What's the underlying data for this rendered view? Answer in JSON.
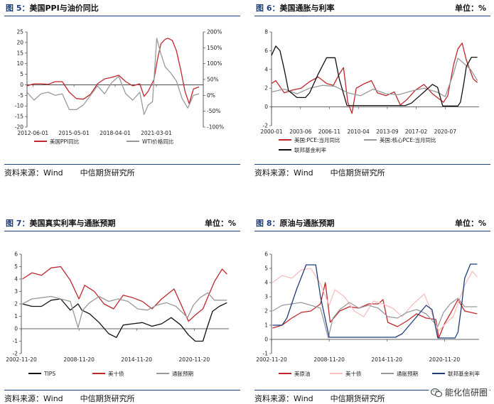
{
  "panels": [
    {
      "fig": "图 5：",
      "title": "美国PPI与油价同比",
      "unit": "",
      "source_label": "资料来源：Wind",
      "source_name": "中信期货研究所"
    },
    {
      "fig": "图 6：",
      "title": "美国通胀与利率",
      "unit": "单位：%",
      "source_label": "资料来源：Wind",
      "source_name": "中信期货研究所"
    },
    {
      "fig": "图 7：",
      "title": "美国真实利率与通胀预期",
      "unit": "单位：%",
      "source_label": "资料来源：Wind",
      "source_name": "中信期货研究所"
    },
    {
      "fig": "图 8：",
      "title": "原油与通胀预期",
      "unit": "单位：%",
      "source_label": "资料来源：Wind",
      "source_name": "中信期货研究所"
    }
  ],
  "watermark": {
    "text": "能化信研圈",
    "icon": "wechat-icon"
  },
  "chart_data": [
    {
      "type": "line",
      "xlim": [
        2012.0,
        2024.5
      ],
      "ylim": [
        -20,
        25
      ],
      "y_ticks": [
        -20,
        -15,
        -10,
        -5,
        0,
        5,
        10,
        15,
        20,
        25
      ],
      "y2lim": [
        -100,
        200
      ],
      "y2_ticks": [
        "-100%",
        "-50%",
        "0%",
        "50%",
        "100%",
        "150%",
        "200%"
      ],
      "y2_tick_values": [
        -100,
        -50,
        0,
        50,
        100,
        150,
        200
      ],
      "x_tick_labels": [
        "2012-06-01",
        "2015-05-01",
        "2018-04-01",
        "2021-03-01"
      ],
      "x_tick_values": [
        2012.42,
        2015.33,
        2018.25,
        2021.17
      ],
      "grid": false,
      "legend": "bottom",
      "series": [
        {
          "name": "美国PPI同比",
          "color": "#c0272d",
          "axis": "left",
          "x": [
            2012.0,
            2012.5,
            2013.0,
            2013.5,
            2014.0,
            2014.5,
            2015.0,
            2015.5,
            2016.0,
            2016.5,
            2017.0,
            2017.5,
            2018.0,
            2018.5,
            2019.0,
            2019.5,
            2020.0,
            2020.3,
            2020.6,
            2021.0,
            2021.25,
            2021.5,
            2021.8,
            2022.0,
            2022.3,
            2022.6,
            2022.9,
            2023.2,
            2023.5,
            2023.8,
            2024.2
          ],
          "y": [
            -0.5,
            0.5,
            0.5,
            0.2,
            1.5,
            1.5,
            -3.5,
            -6.5,
            -6.8,
            -4.5,
            0.5,
            2.8,
            3.5,
            4.5,
            1.5,
            -0.5,
            0.5,
            -5.5,
            -3.0,
            2.5,
            12.0,
            19.5,
            21.5,
            22.0,
            21.0,
            16.0,
            7.0,
            -3.0,
            -9.0,
            -2.0,
            -1.0
          ]
        },
        {
          "name": "WTI价格同比",
          "color": "#999999",
          "axis": "right",
          "x": [
            2012.0,
            2012.5,
            2013.0,
            2013.5,
            2014.0,
            2014.5,
            2015.0,
            2015.5,
            2016.0,
            2016.5,
            2017.0,
            2017.5,
            2018.0,
            2018.5,
            2019.0,
            2019.5,
            2020.0,
            2020.3,
            2020.6,
            2020.9,
            2021.2,
            2021.5,
            2021.8,
            2022.2,
            2022.6,
            2023.0,
            2023.4,
            2023.8,
            2024.2
          ],
          "y": [
            10,
            -15,
            5,
            10,
            0,
            5,
            -45,
            -45,
            -30,
            0,
            30,
            5,
            40,
            60,
            5,
            -15,
            10,
            -60,
            -30,
            -20,
            180,
            130,
            90,
            70,
            45,
            -10,
            -40,
            0,
            5
          ]
        }
      ]
    },
    {
      "type": "line",
      "xlim": [
        2000.0,
        2024.5
      ],
      "ylim": [
        -2,
        8
      ],
      "y_ticks": [
        -2,
        0,
        2,
        4,
        6,
        8
      ],
      "x_tick_labels": [
        "2000-01",
        "2003-06",
        "2006-11",
        "2010-04",
        "2013-09",
        "2017-02",
        "2020-07"
      ],
      "x_tick_values": [
        2000.0,
        2003.42,
        2006.83,
        2010.25,
        2013.67,
        2017.08,
        2020.5
      ],
      "grid": false,
      "legend": "bottom",
      "series": [
        {
          "name": "美国:PCE:当月同比",
          "color": "#c0272d",
          "x": [
            2000.0,
            2000.5,
            2001.5,
            2002.5,
            2003.5,
            2004.5,
            2005.5,
            2006.5,
            2007.3,
            2008.0,
            2008.5,
            2009.0,
            2009.5,
            2010.0,
            2011.0,
            2011.8,
            2012.5,
            2013.5,
            2014.5,
            2015.2,
            2016.0,
            2017.0,
            2018.0,
            2019.0,
            2020.3,
            2020.8,
            2021.5,
            2022.0,
            2022.5,
            2023.0,
            2023.8,
            2024.3
          ],
          "y": [
            2.5,
            2.8,
            1.5,
            1.8,
            2.0,
            2.7,
            3.2,
            2.5,
            2.3,
            3.5,
            4.2,
            0.5,
            -0.7,
            2.0,
            2.5,
            2.8,
            1.5,
            1.2,
            1.6,
            0.2,
            0.8,
            1.8,
            2.4,
            1.4,
            0.5,
            1.2,
            4.5,
            6.2,
            6.8,
            5.0,
            3.0,
            2.6
          ]
        },
        {
          "name": "美国:核心PCE:当月同比",
          "color": "#999999",
          "x": [
            2000.0,
            2001.5,
            2003.0,
            2004.5,
            2006.0,
            2007.5,
            2009.0,
            2010.5,
            2012.0,
            2013.5,
            2015.0,
            2016.5,
            2018.0,
            2019.5,
            2020.5,
            2021.5,
            2022.0,
            2022.5,
            2023.5,
            2024.3
          ],
          "y": [
            1.6,
            1.9,
            1.4,
            2.0,
            2.3,
            2.2,
            1.5,
            1.2,
            1.9,
            1.4,
            1.3,
            1.7,
            2.0,
            1.6,
            1.1,
            3.6,
            5.2,
            4.8,
            4.0,
            2.8
          ]
        },
        {
          "name": "联邦基金利率",
          "color": "#111111",
          "x": [
            2000.0,
            2000.5,
            2001.0,
            2001.5,
            2002.0,
            2003.0,
            2004.0,
            2004.5,
            2005.5,
            2006.5,
            2007.5,
            2008.0,
            2008.9,
            2015.8,
            2016.5,
            2017.5,
            2018.5,
            2019.0,
            2019.6,
            2020.2,
            2022.0,
            2022.3,
            2022.7,
            2023.0,
            2023.6,
            2024.3
          ],
          "y": [
            5.5,
            6.5,
            6.0,
            4.0,
            1.75,
            1.0,
            1.0,
            1.5,
            3.5,
            5.25,
            5.25,
            3.0,
            0.15,
            0.15,
            0.4,
            1.2,
            2.0,
            2.4,
            2.1,
            0.1,
            0.1,
            0.5,
            2.5,
            4.3,
            5.3,
            5.3
          ]
        }
      ]
    },
    {
      "type": "line",
      "xlim": [
        2002.9,
        2024.5
      ],
      "ylim": [
        -2,
        6
      ],
      "y_ticks": [
        -2,
        -1,
        0,
        1,
        2,
        3,
        4,
        5,
        6
      ],
      "x_tick_labels": [
        "2002-11-20",
        "2008-11-20",
        "2014-11-20",
        "2020-11-20"
      ],
      "x_tick_values": [
        2002.9,
        2008.9,
        2014.9,
        2020.9
      ],
      "grid": false,
      "legend": "bottom",
      "series": [
        {
          "name": "TIPS",
          "color": "#111111",
          "x": [
            2003.0,
            2004.0,
            2005.0,
            2006.0,
            2007.0,
            2008.0,
            2008.8,
            2009.2,
            2010.0,
            2011.0,
            2012.0,
            2012.8,
            2013.5,
            2014.5,
            2015.5,
            2016.5,
            2017.5,
            2018.5,
            2019.5,
            2020.3,
            2021.0,
            2021.8,
            2022.2,
            2022.8,
            2023.5,
            2024.3
          ],
          "y": [
            2.0,
            1.8,
            1.8,
            2.3,
            2.4,
            1.5,
            2.0,
            1.5,
            1.2,
            0.5,
            -0.4,
            -0.7,
            0.3,
            0.4,
            0.5,
            0.2,
            0.4,
            0.9,
            0.3,
            -0.5,
            -1.0,
            -1.0,
            0.0,
            1.4,
            1.8,
            2.1
          ]
        },
        {
          "name": "美十债",
          "color": "#c0272d",
          "x": [
            2003.0,
            2004.0,
            2005.0,
            2006.0,
            2007.0,
            2008.0,
            2008.9,
            2009.5,
            2010.5,
            2011.5,
            2012.5,
            2013.5,
            2014.5,
            2015.5,
            2016.5,
            2017.5,
            2018.8,
            2019.5,
            2020.3,
            2021.0,
            2021.8,
            2022.5,
            2023.0,
            2023.8,
            2024.3
          ],
          "y": [
            4.0,
            4.5,
            4.3,
            4.9,
            5.0,
            3.9,
            2.4,
            3.5,
            3.0,
            2.0,
            1.6,
            2.7,
            2.5,
            2.2,
            1.6,
            2.4,
            3.2,
            2.0,
            0.6,
            1.1,
            1.6,
            2.9,
            3.8,
            4.8,
            4.4
          ]
        },
        {
          "name": "通胀预期",
          "color": "#999999",
          "x": [
            2003.0,
            2004.0,
            2005.0,
            2006.0,
            2007.0,
            2008.0,
            2008.8,
            2009.3,
            2010.0,
            2011.0,
            2012.0,
            2013.0,
            2014.0,
            2015.0,
            2016.0,
            2017.0,
            2018.0,
            2019.0,
            2020.2,
            2020.8,
            2021.5,
            2022.3,
            2023.0,
            2024.3
          ],
          "y": [
            2.0,
            2.4,
            2.5,
            2.6,
            2.4,
            2.2,
            0.1,
            1.5,
            2.1,
            2.6,
            2.2,
            2.4,
            2.2,
            1.6,
            1.5,
            1.9,
            2.1,
            1.8,
            0.9,
            1.9,
            2.5,
            2.9,
            2.3,
            2.3
          ]
        }
      ]
    },
    {
      "type": "line",
      "xlim": [
        2002.9,
        2024.5
      ],
      "ylim": [
        -1,
        6
      ],
      "y_ticks": [
        -1,
        0,
        1,
        2,
        3,
        4,
        5,
        6
      ],
      "x_tick_labels": [
        "2002-11-20",
        "2008-11-20",
        "2014-11-20",
        "2020-11-20"
      ],
      "x_tick_values": [
        2002.9,
        2008.9,
        2014.9,
        2020.9
      ],
      "grid": false,
      "legend": "bottom",
      "series": [
        {
          "name": "美原油",
          "color": "#c0272d",
          "x": [
            2003.0,
            2004.0,
            2005.0,
            2006.0,
            2007.0,
            2008.0,
            2008.5,
            2009.0,
            2010.0,
            2011.0,
            2012.0,
            2013.0,
            2014.0,
            2014.5,
            2015.0,
            2016.0,
            2017.0,
            2018.0,
            2019.0,
            2020.0,
            2020.3,
            2020.9,
            2021.5,
            2022.3,
            2023.0,
            2024.3
          ],
          "y": [
            0.8,
            1.0,
            1.5,
            1.9,
            2.0,
            2.5,
            4.0,
            1.2,
            2.0,
            2.3,
            2.2,
            2.5,
            2.5,
            2.8,
            1.2,
            0.9,
            1.3,
            1.8,
            1.5,
            1.4,
            0.1,
            1.1,
            1.8,
            2.8,
            2.0,
            1.8
          ]
        },
        {
          "name": "美十债",
          "color": "#f7bfbf",
          "x": [
            2003.0,
            2004.0,
            2005.0,
            2006.0,
            2007.0,
            2008.0,
            2008.9,
            2009.5,
            2010.5,
            2011.5,
            2012.5,
            2013.5,
            2014.5,
            2015.5,
            2016.5,
            2017.5,
            2018.8,
            2019.5,
            2020.3,
            2021.0,
            2021.8,
            2022.5,
            2023.0,
            2023.8,
            2024.3
          ],
          "y": [
            4.0,
            4.5,
            4.3,
            4.9,
            5.0,
            3.9,
            2.4,
            3.5,
            3.0,
            2.0,
            1.6,
            2.7,
            2.5,
            2.2,
            1.6,
            2.4,
            3.2,
            2.0,
            0.6,
            1.1,
            1.6,
            2.9,
            3.8,
            4.8,
            4.4
          ]
        },
        {
          "name": "通胀预期",
          "color": "#999999",
          "x": [
            2003.0,
            2004.0,
            2005.0,
            2006.0,
            2007.0,
            2008.0,
            2008.8,
            2009.3,
            2010.0,
            2011.0,
            2012.0,
            2013.0,
            2014.0,
            2015.0,
            2016.0,
            2017.0,
            2018.0,
            2019.0,
            2020.2,
            2020.8,
            2021.5,
            2022.3,
            2023.0,
            2024.3
          ],
          "y": [
            2.0,
            2.4,
            2.5,
            2.6,
            2.4,
            2.2,
            0.1,
            1.5,
            2.1,
            2.6,
            2.2,
            2.4,
            2.2,
            1.6,
            1.5,
            1.9,
            2.1,
            1.8,
            0.9,
            1.9,
            2.5,
            2.9,
            2.3,
            2.3
          ]
        },
        {
          "name": "联邦基金利率",
          "color": "#1f3e7a",
          "x": [
            2003.0,
            2004.0,
            2004.5,
            2005.5,
            2006.5,
            2007.5,
            2008.0,
            2008.9,
            2015.8,
            2016.5,
            2017.5,
            2018.5,
            2019.0,
            2019.6,
            2020.2,
            2022.0,
            2022.3,
            2022.7,
            2023.0,
            2023.6,
            2024.3
          ],
          "y": [
            1.0,
            1.0,
            1.5,
            3.5,
            5.25,
            5.25,
            3.0,
            0.15,
            0.15,
            0.4,
            1.2,
            2.0,
            2.4,
            2.1,
            0.1,
            0.1,
            0.5,
            2.5,
            4.3,
            5.3,
            5.3
          ]
        }
      ]
    }
  ]
}
